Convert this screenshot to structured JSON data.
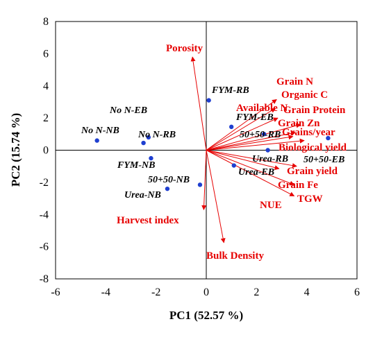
{
  "chart_data": {
    "type": "scatter",
    "title": "",
    "xlabel": "PC1 (52.57 %)",
    "ylabel": "PC2 (15.74 %)",
    "xlim": [
      -6,
      6
    ],
    "ylim": [
      -8,
      8
    ],
    "xticks": [
      -6,
      -4,
      -2,
      0,
      2,
      4,
      6
    ],
    "yticks": [
      -8,
      -6,
      -4,
      -2,
      0,
      2,
      4,
      6,
      8
    ],
    "grid": false,
    "colors": {
      "variables": "#e60000",
      "observations": "#1f3fd0"
    },
    "observations": [
      {
        "name": "FYM-RB",
        "x": 0.1,
        "y": 3.1
      },
      {
        "name": "No N-EB",
        "x": -2.3,
        "y": 0.8
      },
      {
        "name": "No N-NB",
        "x": -4.35,
        "y": 0.6
      },
      {
        "name": "No N-RB",
        "x": -2.5,
        "y": 0.45
      },
      {
        "name": "FYM-EB",
        "x": 1.0,
        "y": 1.45
      },
      {
        "name": "50+50-RB",
        "x": 2.3,
        "y": 1.0
      },
      {
        "name": "FYM-NB",
        "x": -2.2,
        "y": -0.5
      },
      {
        "name": "Urea-RB",
        "x": 2.45,
        "y": 0.0
      },
      {
        "name": "50+50-EB",
        "x": 4.85,
        "y": 0.75
      },
      {
        "name": "Urea-EB",
        "x": 1.1,
        "y": -0.95
      },
      {
        "name": "50+50-NB",
        "x": -0.25,
        "y": -2.15
      },
      {
        "name": "Urea-NB",
        "x": -1.55,
        "y": -2.4
      }
    ],
    "variables": [
      {
        "name": "Porosity",
        "x": -0.55,
        "y": 5.8
      },
      {
        "name": "Grain N",
        "x": 2.8,
        "y": 3.15
      },
      {
        "name": "Organic C",
        "x": 2.75,
        "y": 2.6
      },
      {
        "name": "Available N",
        "x": 2.85,
        "y": 2.0
      },
      {
        "name": "Grain Protein",
        "x": 3.75,
        "y": 1.6
      },
      {
        "name": "Grain Zn",
        "x": 3.55,
        "y": 1.1
      },
      {
        "name": "Grains/year",
        "x": 3.45,
        "y": 0.85
      },
      {
        "name": "Biological yield",
        "x": 3.9,
        "y": 0.6
      },
      {
        "name": "Grain yield",
        "x": 3.6,
        "y": -1.0
      },
      {
        "name": "Grain Fe",
        "x": 3.5,
        "y": -2.15
      },
      {
        "name": "TGW",
        "x": 3.5,
        "y": -2.85
      },
      {
        "name": "NUE",
        "x": 2.9,
        "y": -1.15
      },
      {
        "name": "Harvest index",
        "x": -0.1,
        "y": -3.7
      },
      {
        "name": "Bulk Density",
        "x": 0.7,
        "y": -5.75
      }
    ]
  }
}
